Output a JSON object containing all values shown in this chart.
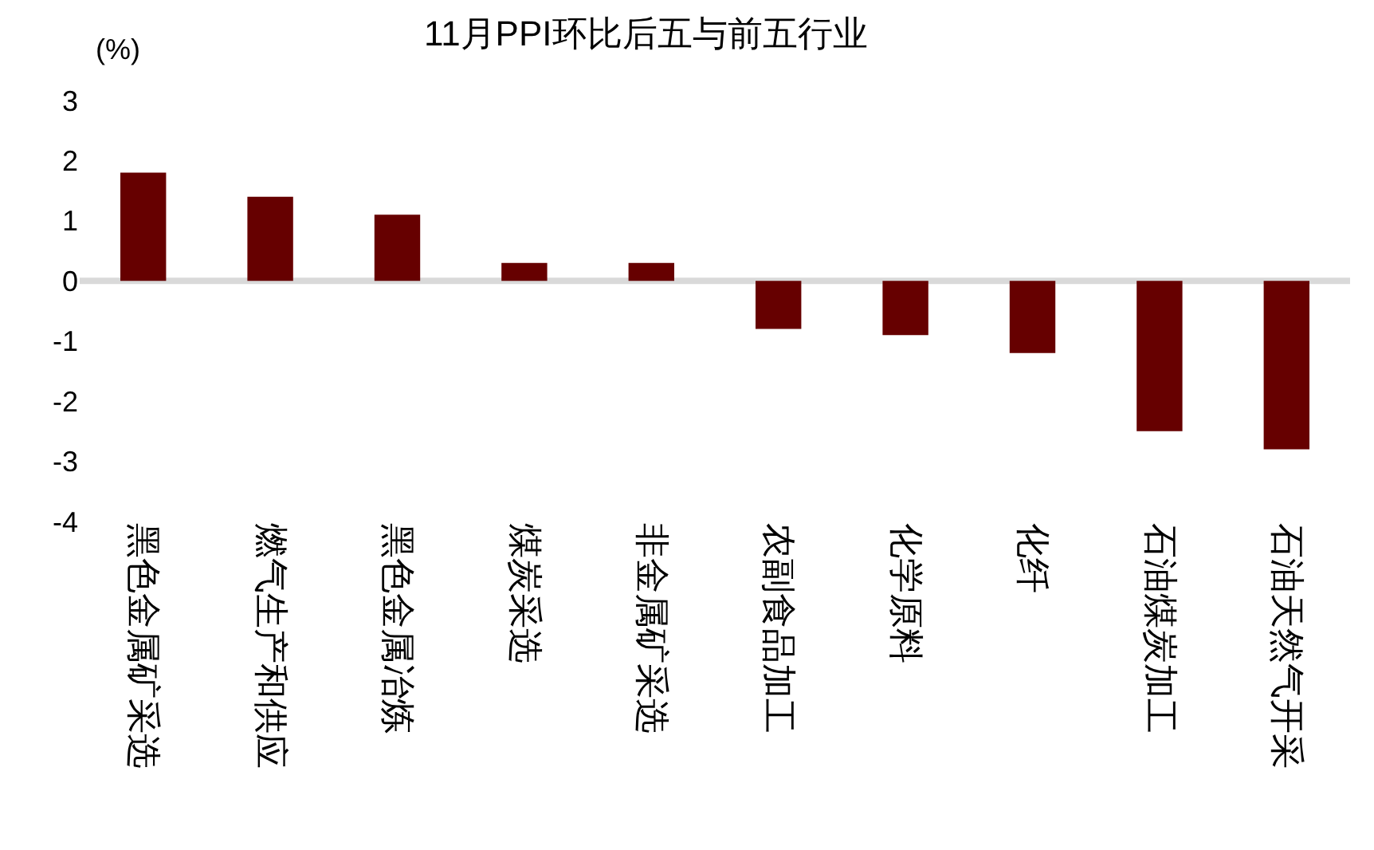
{
  "chart_data": {
    "type": "bar",
    "title": "11月PPI环比后五与前五行业",
    "ylabel": "(%)",
    "categories": [
      "黑色金属矿采选",
      "燃气生产和供应",
      "黑色金属冶炼",
      "煤炭采选",
      "非金属矿采选",
      "农副食品加工",
      "化学原料",
      "化纤",
      "石油煤炭加工",
      "石油天然气开采"
    ],
    "values": [
      1.8,
      1.4,
      1.1,
      0.3,
      0.3,
      -0.8,
      -0.9,
      -1.2,
      -2.5,
      -2.8
    ],
    "color": "#660000",
    "ylim": [
      -4,
      3
    ],
    "yticks": [
      -4,
      -3,
      -2,
      -1,
      0,
      1,
      2,
      3
    ],
    "grid": false,
    "ref_lines": [
      {
        "axis": "y",
        "value": 0,
        "color": "#d9d9d9"
      }
    ]
  }
}
